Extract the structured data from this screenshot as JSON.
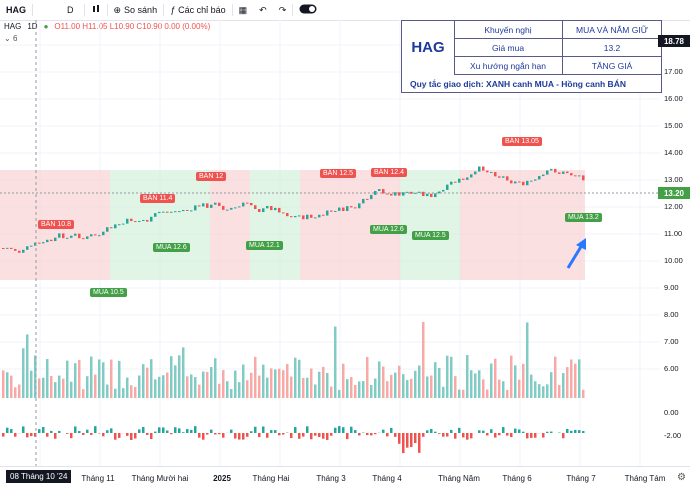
{
  "toolbar": {
    "symbol": "HAG",
    "interval": "D",
    "compare_label": "So sánh",
    "indicators_label": "Các chỉ báo"
  },
  "legend": {
    "symbol": "HAG",
    "interval": "1D",
    "ohlc": "O11.00 H11.05 L10.90 C10.90 0.00 (0.00%)",
    "collapsed_count": "6"
  },
  "signal_table": {
    "ticker": "HAG",
    "rows": [
      {
        "label": "Khuyến nghị",
        "value": "MUA VÀ NẮM GIỮ"
      },
      {
        "label": "Giá mua",
        "value": "13.2"
      },
      {
        "label": "Xu hướng ngắn hạn",
        "value": "TĂNG GIÁ"
      }
    ],
    "rule": "Quy tắc giao dịch: XANH canh MUA - Hồng canh BÁN"
  },
  "price_axis": {
    "top_badge": "18.78",
    "current_badge": "13.20",
    "ticks": [
      "18.00",
      "17.00",
      "16.00",
      "15.00",
      "14.00",
      "13.00",
      "12.00",
      "11.00",
      "10.00",
      "9.00",
      "8.00",
      "7.00",
      "6.00",
      "0.00",
      "-2.00"
    ]
  },
  "signals": [
    {
      "type": "sell",
      "label": "BÁN 10.8"
    },
    {
      "type": "buy",
      "label": "MUA 10.5"
    },
    {
      "type": "sell",
      "label": "BÁN 11.4"
    },
    {
      "type": "buy",
      "label": "MUA 12.6"
    },
    {
      "type": "sell",
      "label": "BÁN 12"
    },
    {
      "type": "buy",
      "label": "MUA 12.1"
    },
    {
      "type": "sell",
      "label": "BÁN 12.5"
    },
    {
      "type": "sell",
      "label": "BÁN 12.4"
    },
    {
      "type": "buy",
      "label": "MUA 12.6"
    },
    {
      "type": "buy",
      "label": "MUA 12.5"
    },
    {
      "type": "sell",
      "label": "BÁN 13.05"
    },
    {
      "type": "buy",
      "label": "MUA 13.2"
    }
  ],
  "time_axis": {
    "cursor_date": "08 Tháng 10 '24",
    "labels": [
      "Tháng 11",
      "Tháng Mười hai",
      "2025",
      "Tháng Hai",
      "Tháng 3",
      "Tháng 4",
      "Tháng Năm",
      "Tháng 6",
      "Tháng 7",
      "Tháng Tám"
    ]
  },
  "colors": {
    "buy": "#43a047",
    "sell": "#ef5350",
    "accent_blue": "#1e3a9a",
    "band_green": "#c8ecd2",
    "band_red": "#f7c6c8"
  }
}
